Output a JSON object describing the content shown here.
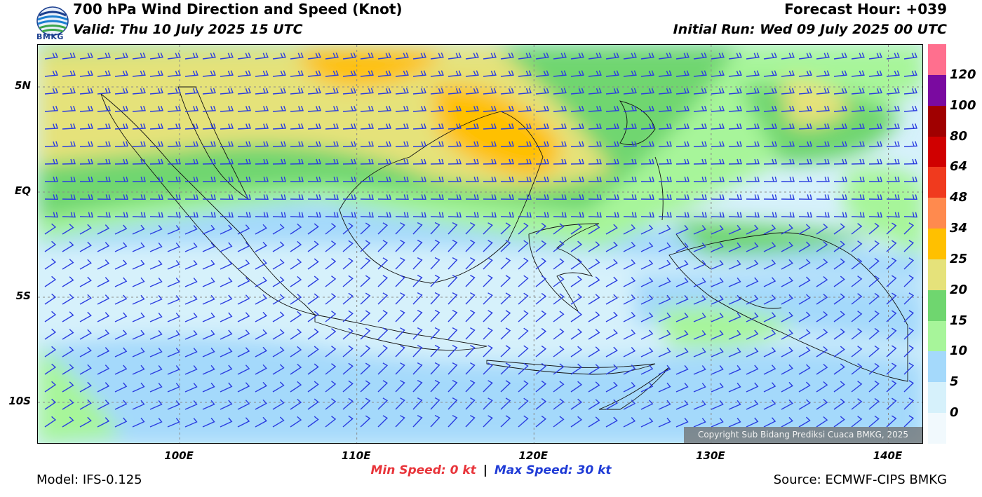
{
  "header": {
    "logo_text": "BMKG",
    "title": "700 hPa Wind Direction and Speed (Knot)",
    "valid": "Valid: Thu 10 July 2025 15 UTC",
    "forecast_hour": "Forecast Hour: +039",
    "initial_run": "Initial Run: Wed 09 July 2025 00 UTC"
  },
  "map": {
    "lat_labels": [
      "5N",
      "EQ",
      "5S",
      "10S"
    ],
    "lon_labels": [
      "100E",
      "110E",
      "120E",
      "130E",
      "140E"
    ],
    "lat_values": [
      5,
      0,
      -5,
      -10
    ],
    "lon_values": [
      100,
      110,
      120,
      130,
      140
    ],
    "lat_range": [
      -12,
      7
    ],
    "lon_range": [
      92,
      142
    ],
    "grid": true,
    "barb_color": "#2b3de0",
    "coast_color": "#111111",
    "copyright": "Copyright Sub Bidang Prediksi Cuaca BMKG, 2025"
  },
  "colorbar": {
    "labels": [
      "120",
      "100",
      "80",
      "64",
      "48",
      "34",
      "25",
      "20",
      "15",
      "10",
      "5",
      "0"
    ],
    "colors": [
      "#ff6f8e",
      "#7a0aa0",
      "#a00000",
      "#d00000",
      "#f03a1e",
      "#ff8a4e",
      "#ffc000",
      "#e5e27a",
      "#6fd66f",
      "#a7f59a",
      "#a4d9fb",
      "#d6f1fb",
      "#f1f9fd"
    ],
    "bin_edges_knots": [
      120,
      100,
      80,
      64,
      48,
      34,
      25,
      20,
      15,
      10,
      5,
      0
    ]
  },
  "footer": {
    "min_label": "Min Speed:",
    "min_value": "0 kt",
    "separator": "|",
    "max_label": "Max Speed:",
    "max_value": "30 kt",
    "model": "Model: IFS-0.125",
    "source": "Source: ECMWF-CIPS BMKG"
  }
}
